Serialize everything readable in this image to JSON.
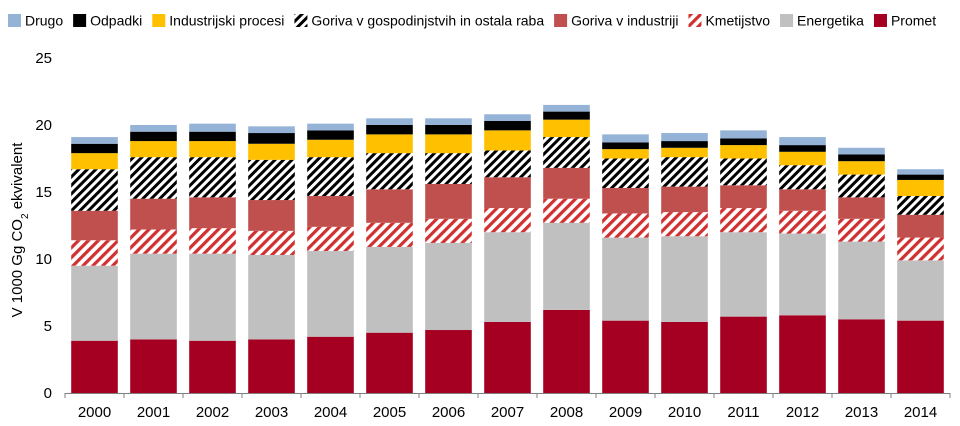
{
  "chart_data": {
    "type": "bar",
    "stacked": true,
    "categories": [
      "2000",
      "2001",
      "2002",
      "2003",
      "2004",
      "2005",
      "2006",
      "2007",
      "2008",
      "2009",
      "2010",
      "2011",
      "2012",
      "2013",
      "2014"
    ],
    "ylabel": "V 1000 Gg CO",
    "ylabel_sub": "2",
    "ylabel_rest": " ekvivalent",
    "ylim": [
      0,
      25
    ],
    "yticks": [
      0,
      5,
      10,
      15,
      20,
      25
    ],
    "legend_position": "top",
    "series": [
      {
        "name": "Promet",
        "color": "#a50021",
        "pattern": "solid",
        "values": [
          3.9,
          4.0,
          3.9,
          4.0,
          4.2,
          4.5,
          4.7,
          5.3,
          6.2,
          5.4,
          5.3,
          5.7,
          5.8,
          5.5,
          5.4
        ]
      },
      {
        "name": "Energetika",
        "color": "#c0c0c0",
        "pattern": "solid",
        "values": [
          5.6,
          6.4,
          6.5,
          6.3,
          6.4,
          6.4,
          6.5,
          6.7,
          6.5,
          6.2,
          6.4,
          6.3,
          6.1,
          5.8,
          4.5
        ]
      },
      {
        "name": "Kmetijstvo",
        "color": "#d03030",
        "pattern": "hatch-red",
        "values": [
          1.9,
          1.8,
          1.9,
          1.8,
          1.8,
          1.8,
          1.8,
          1.8,
          1.8,
          1.8,
          1.8,
          1.8,
          1.7,
          1.7,
          1.7
        ]
      },
      {
        "name": "Goriva v industriji",
        "color": "#c0504d",
        "pattern": "solid",
        "values": [
          2.2,
          2.3,
          2.3,
          2.3,
          2.3,
          2.5,
          2.6,
          2.3,
          2.3,
          1.9,
          1.9,
          1.7,
          1.6,
          1.6,
          1.7
        ]
      },
      {
        "name": "Goriva v gospodinjstvih in ostala raba",
        "color": "#000000",
        "pattern": "hatch-black",
        "values": [
          3.1,
          3.1,
          3.0,
          3.0,
          2.9,
          2.7,
          2.3,
          2.0,
          2.3,
          2.2,
          2.2,
          2.0,
          1.8,
          1.7,
          1.4
        ]
      },
      {
        "name": "Industrijski procesi",
        "color": "#ffc000",
        "pattern": "solid",
        "values": [
          1.2,
          1.2,
          1.2,
          1.2,
          1.3,
          1.4,
          1.4,
          1.5,
          1.3,
          0.7,
          0.7,
          1.0,
          1.0,
          1.0,
          1.2
        ]
      },
      {
        "name": "Odpadki",
        "color": "#000000",
        "pattern": "solid",
        "values": [
          0.7,
          0.7,
          0.7,
          0.8,
          0.7,
          0.7,
          0.7,
          0.7,
          0.6,
          0.5,
          0.5,
          0.5,
          0.5,
          0.5,
          0.4
        ]
      },
      {
        "name": "Drugo",
        "color": "#95b3d7",
        "pattern": "solid",
        "values": [
          0.5,
          0.5,
          0.6,
          0.5,
          0.5,
          0.5,
          0.5,
          0.5,
          0.5,
          0.6,
          0.6,
          0.6,
          0.6,
          0.5,
          0.4
        ]
      }
    ]
  }
}
